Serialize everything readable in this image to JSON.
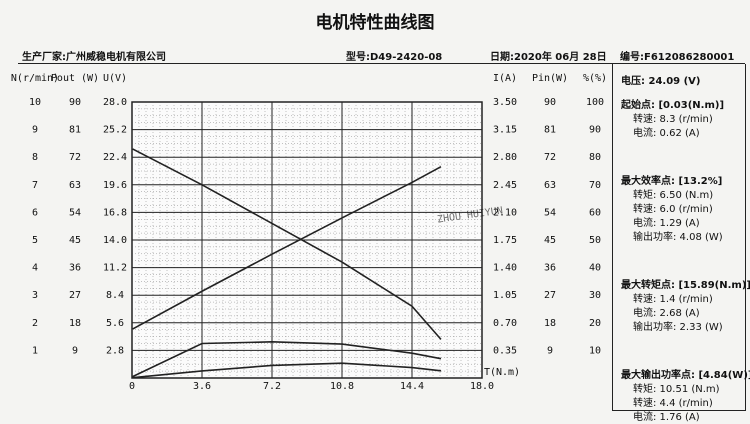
{
  "header": {
    "title": "电机特性曲线图",
    "maker": "生产厂家:广州威稳电机有限公司",
    "model": "型号:D49-2420-08",
    "date": "日期:2020年 06月 28日",
    "serial": "编号:F612086280001"
  },
  "panel": {
    "voltage": "电压:  24.09 (V)",
    "groups": [
      {
        "head": "起始点: [0.03(N.m)]",
        "lines": [
          "转速: 8.3 (r/min)",
          "电流: 0.62 (A)"
        ]
      },
      {
        "head": "最大效率点: [13.2%]",
        "lines": [
          "转矩: 6.50 (N.m)",
          "转速: 6.0 (r/min)",
          "电流: 1.29 (A)",
          "输出功率: 4.08 (W)"
        ]
      },
      {
        "head": "最大转矩点: [15.89(N.m)]",
        "lines": [
          "转速: 1.4 (r/min)",
          "电流: 2.68 (A)",
          "输出功率: 2.33 (W)"
        ]
      },
      {
        "head": "最大输出功率点: [4.84(W)]",
        "lines": [
          "转矩: 10.51 (N.m)",
          "转速: 4.4 (r/min)",
          "电流: 1.76 (A)"
        ]
      }
    ]
  },
  "chart_data": {
    "type": "line",
    "xlabel": "T(N.m)",
    "watermark": "ZHOU HUIYUN",
    "xlim": [
      0,
      18
    ],
    "xticks": [
      0,
      3.6,
      7.2,
      10.8,
      14.4,
      {
        "value": 18,
        "label": "18.0"
      }
    ],
    "x": [
      0.03,
      3.6,
      7.2,
      10.8,
      14.4,
      15.89
    ],
    "axes": [
      {
        "label": "N(r/min)",
        "side": "left",
        "lim": [
          0,
          10
        ],
        "ticks": [
          1,
          2,
          3,
          4,
          5,
          6,
          7,
          8,
          9,
          10
        ]
      },
      {
        "label": "Pout (W)",
        "side": "left",
        "lim": [
          0,
          90
        ],
        "ticks": [
          9,
          18,
          27,
          36,
          45,
          54,
          63,
          72,
          81,
          90
        ]
      },
      {
        "label": "U(V)",
        "side": "left",
        "lim": [
          0,
          28
        ],
        "ticks": [
          2.8,
          5.6,
          8.4,
          11.2,
          {
            "value": 14,
            "label": "14.0"
          },
          16.8,
          19.6,
          22.4,
          25.2,
          {
            "value": 28,
            "label": "28.0"
          }
        ]
      },
      {
        "label": "I(A)",
        "side": "right",
        "lim": [
          0,
          3.5
        ],
        "ticks": [
          0.35,
          {
            "value": 0.7,
            "label": "0.70"
          },
          1.05,
          {
            "value": 1.4,
            "label": "1.40"
          },
          1.75,
          {
            "value": 2.1,
            "label": "2.10"
          },
          2.45,
          {
            "value": 2.8,
            "label": "2.80"
          },
          3.15,
          {
            "value": 3.5,
            "label": "3.50"
          }
        ]
      },
      {
        "label": "Pin(W)",
        "side": "right",
        "lim": [
          0,
          90
        ],
        "ticks": [
          9,
          18,
          27,
          36,
          45,
          54,
          63,
          72,
          81,
          90
        ]
      },
      {
        "label": "%(%)",
        "side": "right",
        "lim": [
          0,
          100
        ],
        "ticks": [
          10,
          20,
          30,
          40,
          50,
          60,
          70,
          80,
          90,
          100
        ]
      }
    ],
    "series": [
      {
        "axis": 0,
        "color": "#222222",
        "values": [
          8.3,
          7.0,
          5.6,
          4.2,
          2.6,
          1.4
        ]
      },
      {
        "axis": 3,
        "color": "#222222",
        "values": [
          0.62,
          1.1,
          1.57,
          2.03,
          2.48,
          2.68
        ]
      },
      {
        "axis": 1,
        "color": "#222222",
        "values": [
          0.1,
          2.3,
          4.1,
          4.83,
          3.4,
          2.33
        ]
      },
      {
        "axis": 5,
        "color": "#222222",
        "values": [
          0.5,
          12.5,
          13.1,
          12.3,
          9.0,
          7.0
        ]
      }
    ]
  }
}
